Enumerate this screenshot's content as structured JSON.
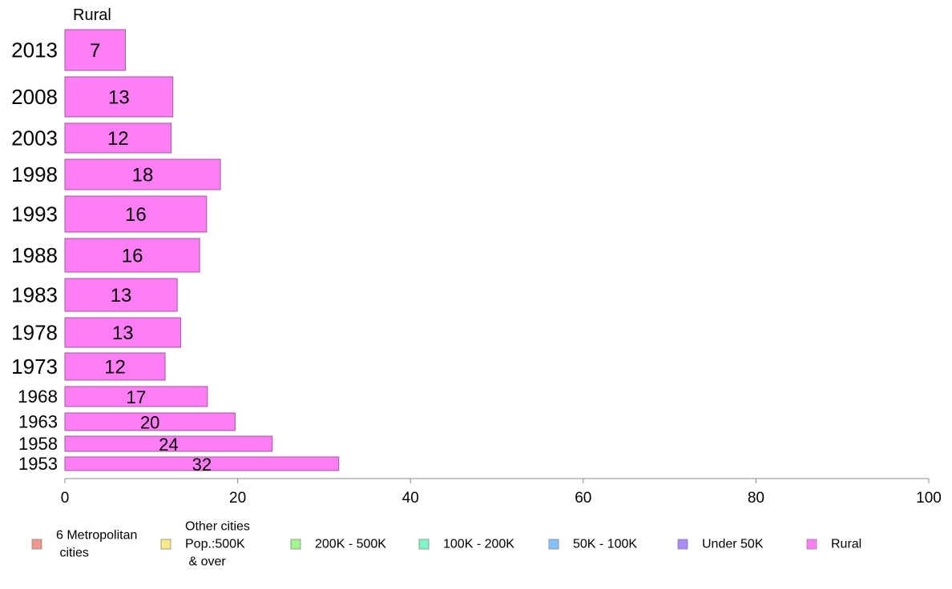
{
  "chart_data": {
    "type": "bar",
    "orientation": "horizontal",
    "title": "Rural",
    "categories": [
      "2013",
      "2008",
      "2003",
      "1998",
      "1993",
      "1988",
      "1983",
      "1978",
      "1973",
      "1968",
      "1963",
      "1958",
      "1953"
    ],
    "series": [
      {
        "name": "Rural",
        "values": [
          7,
          12.5,
          12.3,
          18,
          16.4,
          15.6,
          13,
          13.4,
          11.6,
          16.5,
          19.7,
          24,
          31.7
        ],
        "labels": [
          "7",
          "13",
          "12",
          "18",
          "16",
          "16",
          "13",
          "13",
          "12",
          "17",
          "20",
          "24",
          "32"
        ]
      }
    ],
    "xlim": [
      0,
      100
    ],
    "xticks": [
      "0",
      "20",
      "40",
      "60",
      "80",
      "100"
    ],
    "grid": false,
    "legend": {
      "placement": "bottom",
      "items": [
        {
          "lines": [
            "6 Metropolitan",
            " cities"
          ],
          "color": "#f4958d"
        },
        {
          "lines": [
            "Other cities",
            "Pop.:500K",
            " & over"
          ],
          "color": "#fbe985"
        },
        {
          "lines": [
            "200K - 500K"
          ],
          "color": "#a1f78c"
        },
        {
          "lines": [
            "100K - 200K"
          ],
          "color": "#7ef5c6"
        },
        {
          "lines": [
            "50K - 100K"
          ],
          "color": "#84c2fb"
        },
        {
          "lines": [
            "Under 50K"
          ],
          "color": "#a98af8"
        },
        {
          "lines": [
            "Rural"
          ],
          "color": "#ff7ef5"
        }
      ]
    },
    "colors": {
      "bar": "#ff7ef5",
      "bar_border": "#9a5a96",
      "axis": "#888888"
    }
  }
}
